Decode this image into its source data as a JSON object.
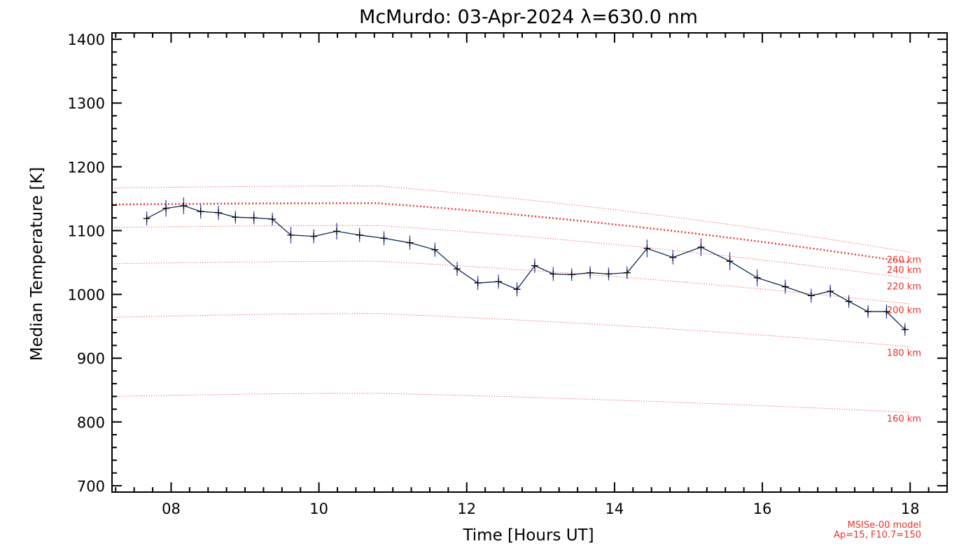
{
  "chart_data": {
    "type": "line",
    "title": "McMurdo: 03-Apr-2024 λ=630.0 nm",
    "xlabel": "Time [Hours UT]",
    "ylabel": "Median Temperature [K]",
    "xlim": [
      7.2,
      18.5
    ],
    "ylim": [
      690,
      1410
    ],
    "x_ticks": [
      8,
      10,
      12,
      14,
      16,
      18
    ],
    "x_tick_labels": [
      "08",
      "10",
      "12",
      "14",
      "16",
      "18"
    ],
    "y_ticks": [
      700,
      800,
      900,
      1000,
      1100,
      1200,
      1300,
      1400
    ],
    "y_tick_labels": [
      "700",
      "800",
      "900",
      "1000",
      "1100",
      "1200",
      "1300",
      "1400"
    ],
    "grid": false,
    "series": [
      {
        "color": "#0b2a55",
        "errorbar_color": "#2a2ae0",
        "x": [
          7.67,
          7.93,
          8.17,
          8.4,
          8.64,
          8.87,
          9.12,
          9.37,
          9.62,
          9.93,
          10.24,
          10.55,
          10.88,
          11.23,
          11.57,
          11.87,
          12.15,
          12.43,
          12.68,
          12.92,
          13.17,
          13.42,
          13.67,
          13.92,
          14.17,
          14.44,
          14.79,
          15.17,
          15.56,
          15.93,
          16.31,
          16.66,
          16.92,
          17.17,
          17.43,
          17.68,
          17.93
        ],
        "y": [
          1119,
          1135,
          1139,
          1130,
          1128,
          1121,
          1120,
          1118,
          1093,
          1091,
          1099,
          1093,
          1088,
          1081,
          1070,
          1040,
          1018,
          1020,
          1008,
          1045,
          1032,
          1031,
          1034,
          1032,
          1034,
          1072,
          1058,
          1074,
          1052,
          1026,
          1012,
          998,
          1005,
          989,
          973,
          973,
          945
        ],
        "error": [
          11,
          13,
          13,
          11,
          11,
          10,
          10,
          10,
          13,
          11,
          13,
          11,
          11,
          11,
          11,
          11,
          11,
          11,
          11,
          11,
          11,
          10,
          10,
          10,
          10,
          14,
          11,
          14,
          14,
          13,
          11,
          11,
          10,
          10,
          10,
          11,
          10
        ]
      }
    ],
    "model_curves": [
      {
        "label": "160 km",
        "y_start": 840,
        "y_mid": 845,
        "y_end": 815
      },
      {
        "label": "180 km",
        "y_start": 964,
        "y_mid": 970,
        "y_end": 918
      },
      {
        "label": "200 km",
        "y_start": 1048,
        "y_mid": 1052,
        "y_end": 985
      },
      {
        "label": "220 km",
        "y_start": 1105,
        "y_mid": 1108,
        "y_end": 1025
      },
      {
        "label": "240 km",
        "y_start": 1141,
        "y_mid": 1143,
        "y_end": 1050,
        "bold": true
      },
      {
        "label": "260 km",
        "y_start": 1167,
        "y_mid": 1170,
        "y_end": 1066
      }
    ],
    "model_labels": [
      {
        "text": "260 km",
        "y": 1055
      },
      {
        "text": "240 km",
        "y": 1039
      },
      {
        "text": "220 km",
        "y": 1013
      },
      {
        "text": "200 km",
        "y": 976
      },
      {
        "text": "180 km",
        "y": 909
      },
      {
        "text": "160 km",
        "y": 806
      }
    ],
    "model_note": [
      "MSISe-00 model",
      "Ap=15, F10.7=150"
    ],
    "colors": {
      "axes": "#000000",
      "data_line": "#0b2a55",
      "errorbars": "#2a2ae0",
      "model": "#e8322e"
    }
  }
}
